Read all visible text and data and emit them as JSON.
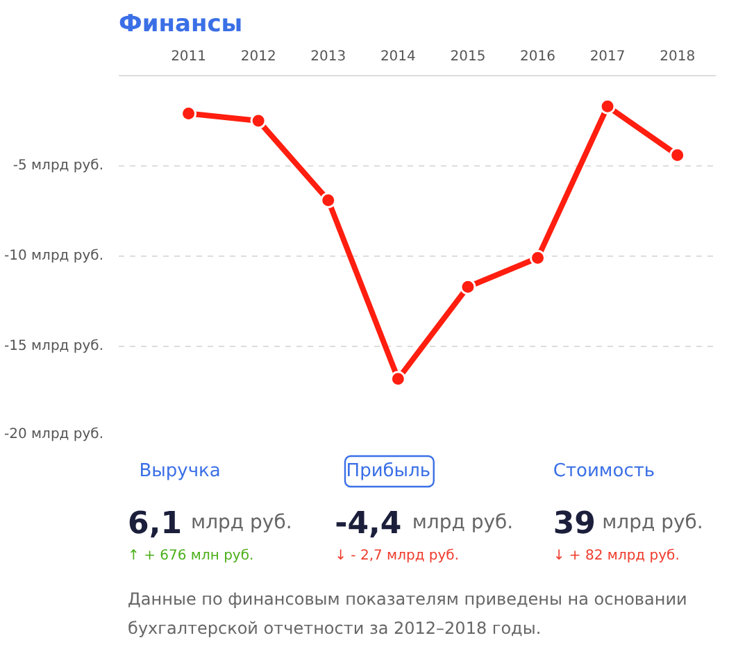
{
  "chart_data": [
    {
      "type": "line",
      "title": "Финансы",
      "categories": [
        "2011",
        "2012",
        "2013",
        "2014",
        "2015",
        "2016",
        "2017",
        "2018"
      ],
      "series": [
        {
          "color": "#ff1e0f",
          "values": [
            -2.1,
            -2.5,
            -6.9,
            -16.8,
            -11.7,
            -10.1,
            -1.7,
            -4.4
          ]
        }
      ],
      "ylim": [
        -20,
        0
      ],
      "yticks": [
        {
          "value": 0,
          "label": null
        },
        {
          "value": -5,
          "label": "-5 млрд руб."
        },
        {
          "value": -10,
          "label": "-10 млрд руб."
        },
        {
          "value": -15,
          "label": "-15 млрд руб."
        },
        {
          "value": -20,
          "label": "-20 млрд руб."
        }
      ],
      "grid": "y",
      "marker": "circle",
      "line_style": "solid"
    },
    {
      "type": "other",
      "annotations": [
        "Выручка",
        "6,1",
        "млрд руб.",
        "↑ + 676 млн руб.",
        "Прибыль",
        "-4,4",
        "млрд руб.",
        "↓ - 2,7 млрд руб.",
        "Стоимость",
        "39",
        "млрд руб.",
        "↓ + 82 млрд руб.",
        "Данные по финансовым показателям приведены на основании бухгалтерской отчетности за 2012–2018 годы."
      ]
    }
  ]
}
